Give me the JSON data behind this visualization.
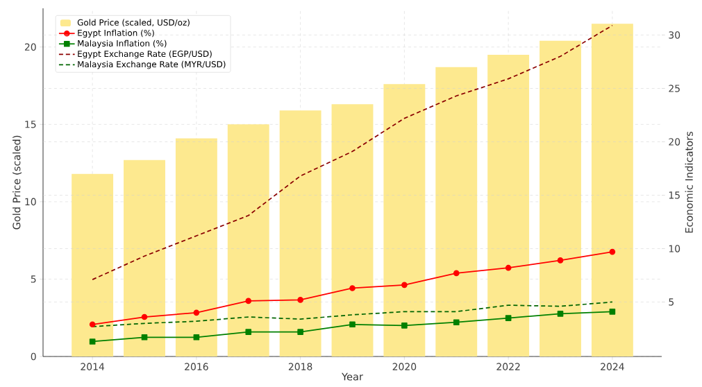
{
  "chart_data": {
    "type": "bar",
    "xlabel": "Year",
    "ylabel": "Gold Price (scaled)",
    "y2label": "Economic Indicators",
    "x": [
      2014,
      2015,
      2016,
      2017,
      2018,
      2019,
      2020,
      2021,
      2022,
      2023,
      2024
    ],
    "series": [
      {
        "name": "Gold Price (scaled, USD/oz)",
        "color": "#fde98f",
        "values": [
          11.8,
          12.7,
          14.1,
          15.0,
          15.9,
          16.3,
          17.6,
          18.7,
          19.5,
          20.4,
          21.5
        ]
      },
      {
        "name": "Egypt Inflation (%)",
        "type": "line",
        "axis": "y2",
        "color": "#ff0000",
        "marker": "circle",
        "line_style": "solid",
        "values": [
          2.9,
          3.6,
          4.0,
          5.1,
          5.2,
          6.3,
          6.6,
          7.7,
          8.2,
          8.9,
          9.7
        ]
      },
      {
        "name": "Malaysia Inflation (%)",
        "type": "line",
        "axis": "y2",
        "color": "#008000",
        "marker": "square",
        "line_style": "solid",
        "values": [
          1.3,
          1.7,
          1.7,
          2.2,
          2.2,
          2.9,
          2.8,
          3.1,
          3.5,
          3.9,
          4.1
        ]
      },
      {
        "name": "Egypt Exchange Rate (EGP/USD)",
        "type": "line",
        "axis": "y2",
        "color": "#8b0000",
        "marker": "none",
        "line_style": "dashed",
        "values": [
          7.1,
          9.3,
          11.2,
          13.1,
          16.8,
          19.1,
          22.2,
          24.3,
          25.9,
          28.0,
          30.9
        ]
      },
      {
        "name": "Malaysia Exchange Rate (MYR/USD)",
        "type": "line",
        "axis": "y2",
        "color": "#006400",
        "marker": "none",
        "line_style": "dashed",
        "values": [
          2.7,
          3.0,
          3.2,
          3.6,
          3.4,
          3.8,
          4.1,
          4.1,
          4.7,
          4.6,
          5.0
        ]
      }
    ],
    "xlim": [
      2013.05,
      2024.95
    ],
    "xticks": [
      2014,
      2016,
      2018,
      2020,
      2022,
      2024
    ],
    "ylim": [
      0,
      22.5
    ],
    "yticks": [
      0,
      5,
      10,
      15,
      20
    ],
    "y2lim": [
      -0.1,
      32.5
    ],
    "y2ticks": [
      5,
      10,
      15,
      20,
      25,
      30
    ],
    "grid": true,
    "legend": "top left"
  }
}
